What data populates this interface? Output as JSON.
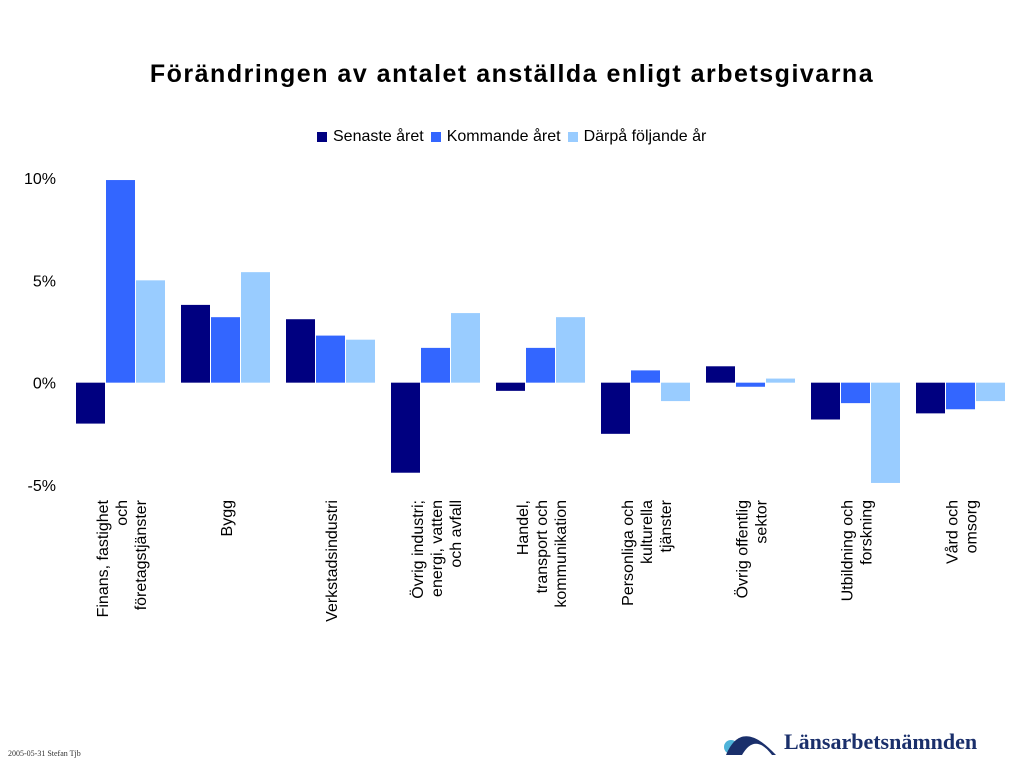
{
  "colors": {
    "senaste": "#000080",
    "kommande": "#3366ff",
    "darpa": "#99ccff"
  },
  "chart_data": {
    "type": "bar",
    "title": "Förändringen av antalet anställda enligt arbetsgivarna",
    "ylim": [
      -5,
      10
    ],
    "yticks": [
      "10%",
      "5%",
      "0%",
      "-5%"
    ],
    "ytick_values": [
      10,
      5,
      0,
      -5
    ],
    "legend_position": "top",
    "grid": false,
    "categories": [
      [
        "Finans, fastighet",
        "och",
        "företagstjänster"
      ],
      [
        "Bygg"
      ],
      [
        "Verkstadsindustri"
      ],
      [
        "Övrig industri;",
        "energi, vatten",
        "och avfall"
      ],
      [
        "Handel,",
        "transport och",
        "kommunikation"
      ],
      [
        "Personliga och",
        "kulturella",
        "tjänster"
      ],
      [
        "Övrig offentlig",
        "sektor"
      ],
      [
        "Utbildning och",
        "forskning"
      ],
      [
        "Vård och",
        "omsorg"
      ]
    ],
    "series": [
      {
        "name": "Senaste året",
        "values": [
          -2.0,
          3.8,
          3.1,
          -4.4,
          -0.4,
          -2.5,
          0.8,
          -1.8,
          -1.5
        ]
      },
      {
        "name": "Kommande året",
        "values": [
          9.9,
          3.2,
          2.3,
          1.7,
          1.7,
          0.6,
          -0.2,
          -1.0,
          -1.3
        ]
      },
      {
        "name": "Därpå följande år",
        "values": [
          5.0,
          5.4,
          2.1,
          3.4,
          3.2,
          -0.9,
          0.2,
          -4.9,
          -0.9
        ]
      }
    ]
  },
  "footer": {
    "note": "2005-05-31 Stefan Tjb"
  },
  "logo": {
    "text": "Länsarbetsnämnden"
  }
}
